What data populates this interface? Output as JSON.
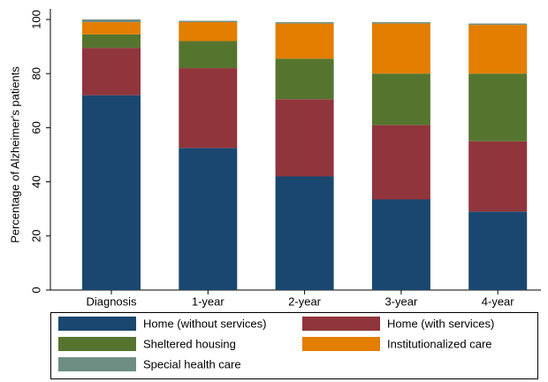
{
  "chart_data": {
    "type": "stacked_bar",
    "y_axis_label": "Percentage of Alzheimer's patients",
    "categories": [
      "Diagnosis",
      "1-year",
      "2-year",
      "3-year",
      "4-year"
    ],
    "series": [
      {
        "name": "Home (without services)",
        "color": "#1a476f",
        "values": [
          72,
          52.5,
          42,
          33.5,
          29
        ]
      },
      {
        "name": "Home (with services)",
        "color": "#90353b",
        "values": [
          17.5,
          29.5,
          28.5,
          27.5,
          26
        ]
      },
      {
        "name": "Sheltered housing",
        "color": "#55752f",
        "values": [
          5,
          10,
          15,
          19,
          25
        ]
      },
      {
        "name": "Institutionalized care",
        "color": "#e37e00",
        "values": [
          4.5,
          7,
          13,
          18.5,
          18
        ]
      },
      {
        "name": "Special health care",
        "color": "#6e8e84",
        "values": [
          1,
          0.5,
          0.5,
          0.5,
          0.5
        ]
      }
    ],
    "ylim": [
      0,
      100
    ],
    "yticks": [
      0,
      20,
      40,
      60,
      80,
      100
    ]
  }
}
